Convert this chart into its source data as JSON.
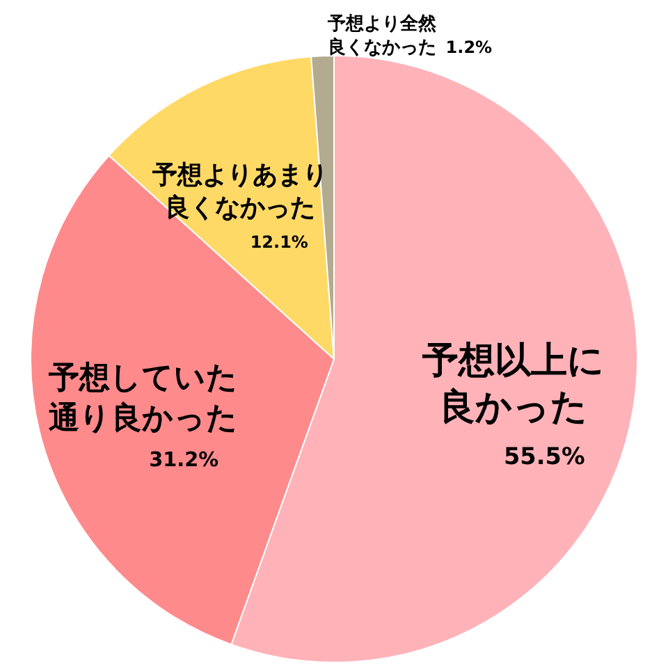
{
  "chart_data": {
    "type": "pie",
    "categories": [
      "予想以上に良かった",
      "予想していた通り良かった",
      "予想よりあまり良くなかった",
      "予想より全然良くなかった"
    ],
    "values": [
      55.5,
      31.2,
      12.1,
      1.2
    ],
    "value_labels": [
      "55.5%",
      "31.2%",
      "12.1%",
      "1.2%"
    ],
    "colors": [
      "#ffb3b8",
      "#ff8a8c",
      "#ffd966",
      "#b3ab90"
    ]
  }
}
